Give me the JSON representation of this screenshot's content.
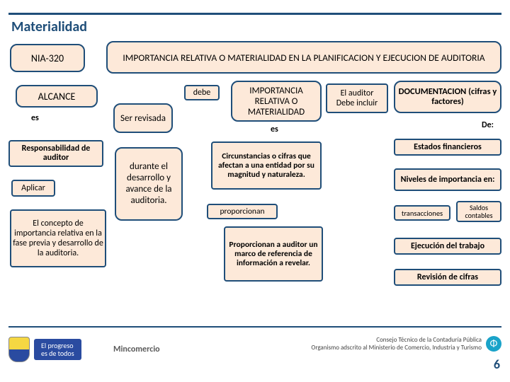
{
  "title": "Materialidad",
  "page_num": "6",
  "footer": {
    "progreso_l1": "El progreso",
    "progreso_l2": "es de todos",
    "mincom": "Mincomercio",
    "glenif_l1": "Consejo Técnico de la Contaduría Pública",
    "glenif_l2": "Organismo adscrito al Ministerio de Comercio, Industria y Turismo",
    "phi": "Φ"
  },
  "colors": {
    "accent": "#1f4e79",
    "box_fill": "#fde9d9",
    "box_border": "#1f4e79"
  },
  "nodes": {
    "nia": "NIA-320",
    "banner": "IMPORTANCIA RELATIVA O MATERIALIDAD EN LA PLANIFICACION  Y EJECUCION DE AUDITORIA",
    "alcance": "ALCANCE",
    "es1": "es",
    "ser": "Ser revisada",
    "debe": "debe",
    "imp": "IMPORTANCIA RELATIVA O MATERIALIDAD",
    "aud_l1": "El auditor",
    "aud_l2": "Debe incluir",
    "doc": "DOCUMENTACION (cifras y factores)",
    "es2": "es",
    "de": "De:",
    "resp": "Responsabilidad de auditor",
    "aplicar": "Aplicar",
    "concepto": "El concepto de importancia relativa en la fase previa y desarrollo de la auditoria.",
    "durante": "durante el desarrollo y avance de la auditoria.",
    "circ": "Circunstancias o cifras que afectan a una entidad por su magnitud y naturaleza.",
    "prop": "proporcionan",
    "marco": "Proporcionan a auditor un marco de referencia de información a revelar.",
    "ef": "Estados financieros",
    "niv": "Niveles de importancia en:",
    "trans": "transacciones",
    "saldos": "Saldos contables",
    "ejec": "Ejecución del trabajo",
    "rev": "Revisión de cifras"
  }
}
